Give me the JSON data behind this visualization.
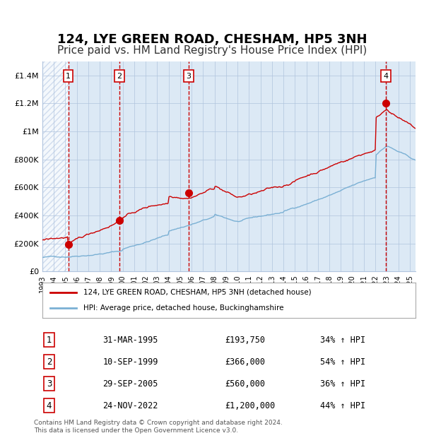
{
  "title": "124, LYE GREEN ROAD, CHESHAM, HP5 3NH",
  "subtitle": "Price paid vs. HM Land Registry's House Price Index (HPI)",
  "title_fontsize": 13,
  "subtitle_fontsize": 11,
  "background_color": "#dce9f5",
  "hatch_color": "#c0d0e8",
  "grid_color": "#b0c4de",
  "red_line_color": "#cc0000",
  "blue_line_color": "#7ab0d4",
  "marker_color": "#cc0000",
  "dashed_line_color": "#cc0000",
  "xlim": [
    1993.0,
    2025.5
  ],
  "ylim": [
    0,
    1500000
  ],
  "yticks": [
    0,
    200000,
    400000,
    600000,
    800000,
    1000000,
    1200000,
    1400000
  ],
  "ytick_labels": [
    "£0",
    "£200K",
    "£400K",
    "£600K",
    "£800K",
    "£1M",
    "£1.2M",
    "£1.4M"
  ],
  "sale_dates": [
    1995.25,
    1999.69,
    2005.74,
    2022.9
  ],
  "sale_prices": [
    193750,
    366000,
    560000,
    1200000
  ],
  "sale_labels": [
    "1",
    "2",
    "3",
    "4"
  ],
  "legend_red": "124, LYE GREEN ROAD, CHESHAM, HP5 3NH (detached house)",
  "legend_blue": "HPI: Average price, detached house, Buckinghamshire",
  "table_data": [
    [
      "1",
      "31-MAR-1995",
      "£193,750",
      "34% ↑ HPI"
    ],
    [
      "2",
      "10-SEP-1999",
      "£366,000",
      "54% ↑ HPI"
    ],
    [
      "3",
      "29-SEP-2005",
      "£560,000",
      "36% ↑ HPI"
    ],
    [
      "4",
      "24-NOV-2022",
      "£1,200,000",
      "44% ↑ HPI"
    ]
  ],
  "footnote": "Contains HM Land Registry data © Crown copyright and database right 2024.\nThis data is licensed under the Open Government Licence v3.0.",
  "xtick_years": [
    1993,
    1994,
    1995,
    1996,
    1997,
    1998,
    1999,
    2000,
    2001,
    2002,
    2003,
    2004,
    2005,
    2006,
    2007,
    2008,
    2009,
    2010,
    2011,
    2012,
    2013,
    2014,
    2015,
    2016,
    2017,
    2018,
    2019,
    2020,
    2021,
    2022,
    2023,
    2024,
    2025
  ]
}
